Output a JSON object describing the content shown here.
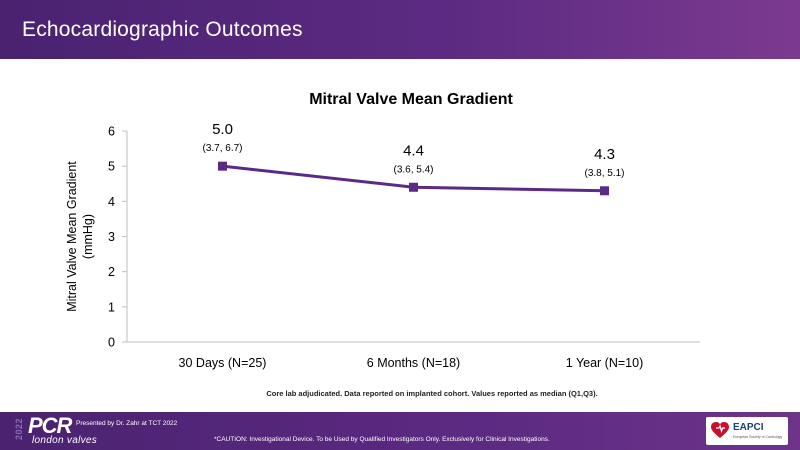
{
  "slide": {
    "title": "Echocardiographic Outcomes",
    "footnote": "Core lab adjudicated. Data reported on implanted cohort. Values reported as median (Q1,Q3)."
  },
  "footer": {
    "year": "2022",
    "logo": "PCR",
    "logo_sub": "london valves",
    "presented_by": "Presented by Dr. Zahr at TCT 2022",
    "caution": "*CAUTION: Investigational Device. To be Used by Qualified Investigators Only. Exclusively for Clinical Investigations.",
    "eapci_name": "EAPCI",
    "eapci_tag": "European Society of Cardiology"
  },
  "colors": {
    "brand_purple": "#5c2a82",
    "series": "#5b2a86"
  },
  "chart_data": {
    "type": "line",
    "title": "Mitral Valve Mean Gradient",
    "ylabel_lines": [
      "Mitral Valve Mean Gradient",
      "(mmHg)"
    ],
    "categories": [
      "30 Days (N=25)",
      "6 Months (N=18)",
      "1 Year (N=10)"
    ],
    "series": [
      {
        "values": [
          5.0,
          4.4,
          4.3
        ]
      }
    ],
    "value_labels": [
      "5.0",
      "4.4",
      "4.3"
    ],
    "iqr_labels": [
      "(3.7, 6.7)",
      "(3.6, 5.4)",
      "(3.8, 5.1)"
    ],
    "ylim": [
      0,
      6
    ],
    "yticks": [
      0,
      1,
      2,
      3,
      4,
      5,
      6
    ],
    "grid": false,
    "legend": "none"
  }
}
